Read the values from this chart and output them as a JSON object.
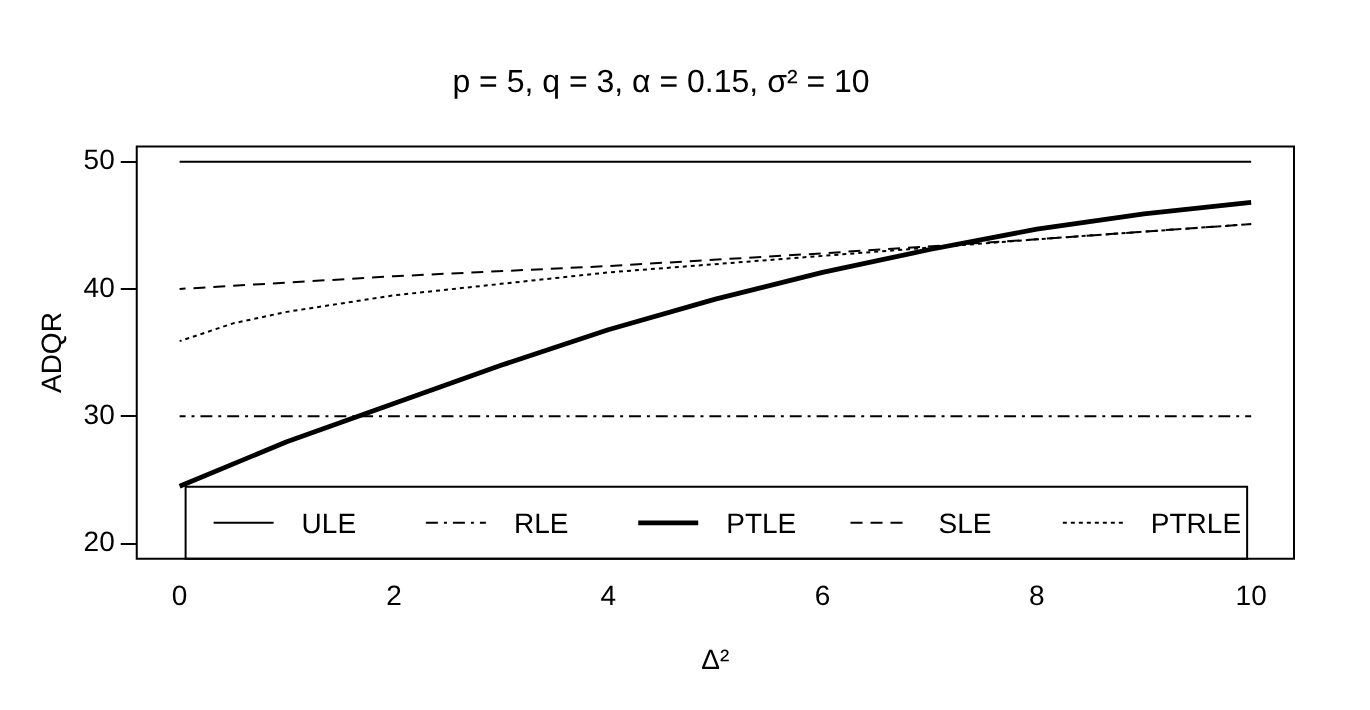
{
  "chart_data": {
    "type": "line",
    "title": "p = 5, q = 3, α = 0.15, σ² = 10",
    "xlabel": "Δ²",
    "ylabel": "ADQR",
    "xlim": [
      -0.4,
      10.4
    ],
    "xticks": [
      0,
      2,
      4,
      6,
      8,
      10
    ],
    "ylim": [
      18.8,
      51.2
    ],
    "yticks": [
      20,
      30,
      40,
      50
    ],
    "grid": false,
    "legend": "bottom",
    "marker": "none",
    "series": [
      {
        "name": "ULE",
        "color": "#000000",
        "line_style": "solid",
        "x": [
          0,
          10
        ],
        "values": [
          50,
          50
        ]
      },
      {
        "name": "RLE",
        "color": "#000000",
        "line_style": "dashdot",
        "x": [
          0,
          10
        ],
        "values": [
          30,
          30
        ]
      },
      {
        "name": "PTLE",
        "color": "#000000",
        "line_style": "solid",
        "x": [
          0,
          1,
          2,
          3,
          4,
          5,
          6,
          7,
          8,
          9,
          10
        ],
        "values": [
          24.5,
          28,
          31,
          34,
          36.8,
          39.2,
          41.3,
          43.1,
          44.7,
          45.9,
          46.8
        ]
      },
      {
        "name": "SLE",
        "color": "#000000",
        "line_style": "dashed",
        "x": [
          0,
          2,
          4,
          6,
          8,
          10
        ],
        "values": [
          40,
          41,
          41.8,
          42.8,
          43.9,
          45.1
        ]
      },
      {
        "name": "PTRLE",
        "color": "#000000",
        "line_style": "dotted",
        "x": [
          0,
          0.5,
          1,
          2,
          3,
          4,
          6,
          8,
          10
        ],
        "values": [
          35.9,
          37.3,
          38.2,
          39.5,
          40.4,
          41.3,
          42.6,
          43.9,
          45.1
        ]
      }
    ]
  }
}
